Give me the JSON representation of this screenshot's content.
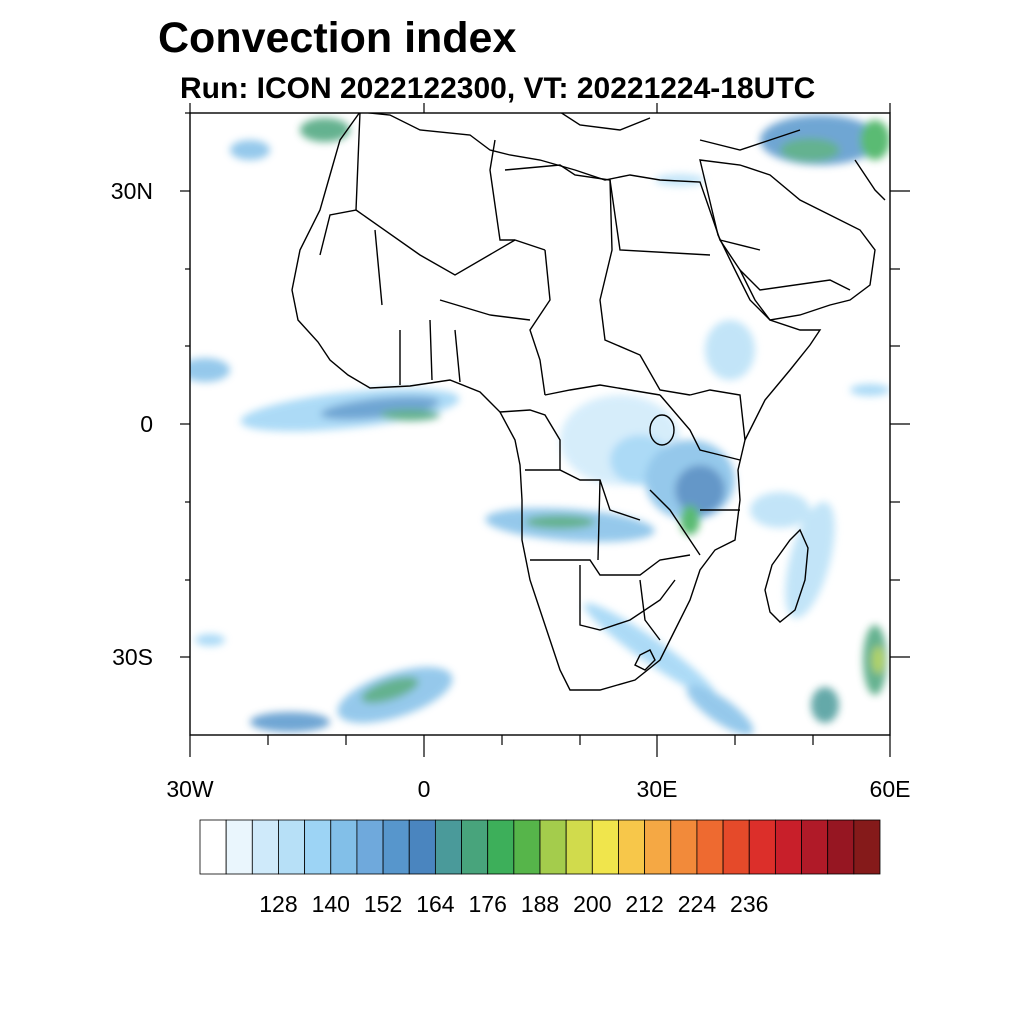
{
  "title": "Convection index",
  "subtitle": "Run: ICON 2022122300,  VT: 20221224-18UTC",
  "map": {
    "extent": {
      "lon_min": -30,
      "lon_max": 60,
      "lat_min": -40,
      "lat_max": 40
    },
    "lat_labels": [
      "30N",
      "0",
      "30S"
    ],
    "lon_labels": [
      "30W",
      "0",
      "30E",
      "60E"
    ],
    "coastline_color": "#000000"
  },
  "colorbar": {
    "colors": [
      "#ffffff",
      "#eaf6fd",
      "#cfeafa",
      "#b7e0f7",
      "#9dd4f5",
      "#82bfe8",
      "#6fa9dc",
      "#5796cc",
      "#4a85bf",
      "#4a9a9a",
      "#48a47c",
      "#3daf5a",
      "#56b54a",
      "#a4cc4c",
      "#d1db4c",
      "#f0e54c",
      "#f7c74a",
      "#f5a844",
      "#f28a3a",
      "#ee6a30",
      "#e54a2a",
      "#dc2f2a",
      "#c81f2a",
      "#b01a28",
      "#961622",
      "#851a1a"
    ],
    "tick_labels": [
      "128",
      "140",
      "152",
      "164",
      "176",
      "188",
      "200",
      "212",
      "224",
      "236"
    ]
  }
}
